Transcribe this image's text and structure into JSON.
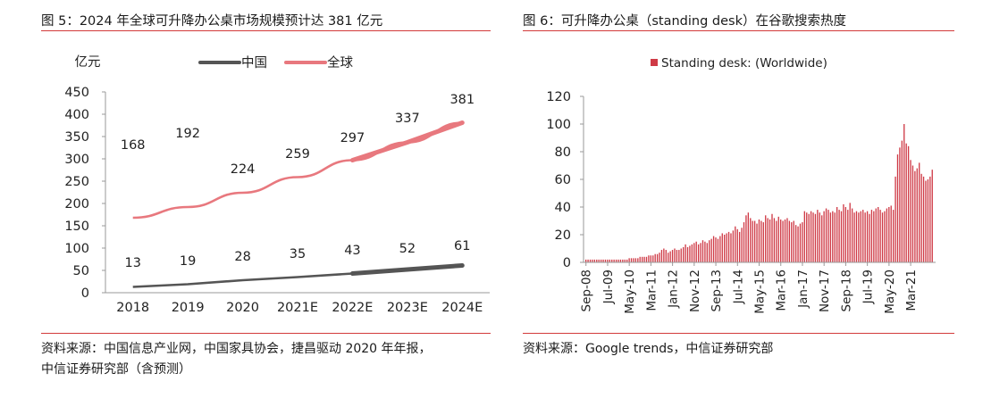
{
  "left": {
    "title": "图 5：2024 年全球可升降办公桌市场规模预计达 381 亿元",
    "source_line1": "资料来源：中国信息产业网，中国家具协会，捷昌驱动 2020 年年报，",
    "source_line2": "中信证券研究部（含预测）"
  },
  "right": {
    "title": "图 6：可升降办公桌（standing desk）在谷歌搜索热度",
    "source": "资料来源：Google trends，中信证券研究部"
  },
  "colors": {
    "rule": "#d33a3a",
    "china": "#555555",
    "global": "#e8787e",
    "bars": "#cf3a46"
  },
  "chart_data": [
    {
      "type": "line",
      "title": "",
      "ylabel": "亿元",
      "xlabel": "",
      "ylim": [
        0,
        450
      ],
      "yticks": [
        0,
        50,
        100,
        150,
        200,
        250,
        300,
        350,
        400,
        450
      ],
      "categories": [
        "2018",
        "2019",
        "2020",
        "2021E",
        "2022E",
        "2023E",
        "2024E"
      ],
      "legend_position": "top",
      "series": [
        {
          "name": "中国",
          "values": [
            13,
            19,
            28,
            35,
            43,
            52,
            61
          ]
        },
        {
          "name": "全球",
          "values": [
            168,
            192,
            224,
            259,
            297,
            337,
            381
          ]
        }
      ]
    },
    {
      "type": "bar",
      "title": "",
      "ylim": [
        0,
        120
      ],
      "yticks": [
        0,
        20,
        40,
        60,
        80,
        100,
        120
      ],
      "legend_position": "top",
      "series_name": "Standing desk: (Worldwide)",
      "xtick_labels": [
        "Sep-08",
        "Jul-09",
        "May-10",
        "Mar-11",
        "Jan-12",
        "Nov-12",
        "Sep-13",
        "Jul-14",
        "May-15",
        "Mar-16",
        "Jan-17",
        "Nov-17",
        "Sep-18",
        "Jul-19",
        "May-20",
        "Mar-21"
      ],
      "start_month": "Sep-08",
      "values": [
        2,
        2,
        2,
        2,
        2,
        2,
        2,
        2,
        2,
        2,
        2,
        2,
        2,
        2,
        2,
        2,
        2,
        2,
        2,
        2,
        3,
        3,
        3,
        3,
        3,
        4,
        4,
        4,
        4,
        5,
        5,
        5,
        6,
        6,
        7,
        9,
        10,
        9,
        7,
        8,
        9,
        10,
        9,
        9,
        10,
        11,
        13,
        11,
        12,
        13,
        14,
        15,
        13,
        14,
        16,
        15,
        14,
        16,
        17,
        19,
        18,
        17,
        19,
        21,
        20,
        21,
        22,
        21,
        23,
        26,
        24,
        22,
        25,
        29,
        34,
        36,
        32,
        30,
        30,
        28,
        31,
        30,
        29,
        34,
        32,
        31,
        35,
        32,
        30,
        33,
        31,
        30,
        31,
        32,
        30,
        29,
        30,
        27,
        26,
        28,
        29,
        37,
        36,
        35,
        37,
        36,
        35,
        38,
        36,
        34,
        37,
        39,
        38,
        36,
        37,
        36,
        40,
        38,
        37,
        42,
        40,
        38,
        43,
        39,
        36,
        37,
        36,
        37,
        38,
        36,
        37,
        35,
        38,
        37,
        39,
        40,
        38,
        36,
        37,
        39,
        40,
        41,
        38,
        62,
        78,
        83,
        88,
        100,
        86,
        84,
        74,
        70,
        66,
        68,
        72,
        64,
        62,
        59,
        60,
        62,
        67
      ]
    }
  ]
}
